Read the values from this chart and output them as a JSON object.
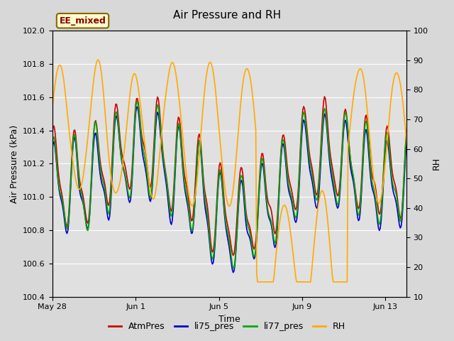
{
  "title": "Air Pressure and RH",
  "xlabel": "Time",
  "ylabel_left": "Air Pressure (kPa)",
  "ylabel_right": "RH",
  "ylim_left": [
    100.4,
    102.0
  ],
  "ylim_right": [
    10,
    100
  ],
  "yticks_left": [
    100.4,
    100.6,
    100.8,
    101.0,
    101.2,
    101.4,
    101.6,
    101.8,
    102.0
  ],
  "yticks_right": [
    10,
    20,
    30,
    40,
    50,
    60,
    70,
    80,
    90,
    100
  ],
  "fig_bg_color": "#d8d8d8",
  "plot_bg_color": "#e0e0e0",
  "line_colors": {
    "AtmPres": "#cc0000",
    "li75_pres": "#0000cc",
    "li77_pres": "#00aa00",
    "RH": "#ffaa00"
  },
  "line_widths": {
    "AtmPres": 1.2,
    "li75_pres": 1.2,
    "li77_pres": 1.2,
    "RH": 1.2
  },
  "label_box": {
    "text": "EE_mixed",
    "bg_color": "#ffffcc",
    "edge_color": "#886600",
    "text_color": "#880000",
    "fontsize": 9,
    "fontweight": "bold"
  },
  "xtick_dates": [
    "May 28",
    "Jun 1",
    "Jun 5",
    "Jun 9",
    "Jun 13"
  ],
  "xtick_values": [
    0,
    4,
    8,
    12,
    16
  ]
}
